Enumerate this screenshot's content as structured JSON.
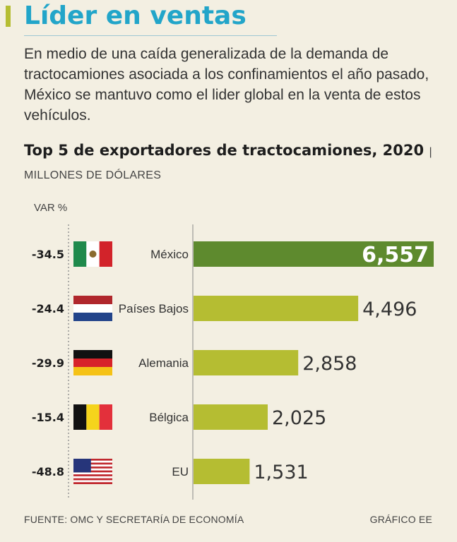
{
  "header": {
    "title": "Líder en ventas",
    "intro": "En medio de una caída generalizada de la demanda de tractocamiones asociada a los confinamientos el año pasado, México se mantuvo como el lider global en la venta de estos vehículos."
  },
  "chart_data": {
    "type": "bar",
    "orientation": "horizontal",
    "title": "Top 5 de exportadores de tractocamiones, 2020",
    "unit_label": "MILLONES DE DÓLARES",
    "var_header": "VAR %",
    "categories": [
      "México",
      "Países Bajos",
      "Alemania",
      "Bélgica",
      "EU"
    ],
    "values": [
      6557,
      4496,
      2858,
      2025,
      1531
    ],
    "value_labels": [
      "6,557",
      "4,496",
      "2,858",
      "2,025",
      "1,531"
    ],
    "var_pct": [
      "-34.5",
      "-24.4",
      "-29.9",
      "-15.4",
      "-48.8"
    ],
    "flags": [
      "mexico-flag-icon",
      "netherlands-flag-icon",
      "germany-flag-icon",
      "belgium-flag-icon",
      "usa-flag-icon"
    ],
    "colors": {
      "highlight": "#5e8a2e",
      "bar": "#b5bd32",
      "accent_title": "#22a5c9"
    }
  },
  "footer": {
    "source": "FUENTE: OMC Y SECRETARÍA DE ECONOMÍA",
    "credit": "GRÁFICO EE"
  }
}
